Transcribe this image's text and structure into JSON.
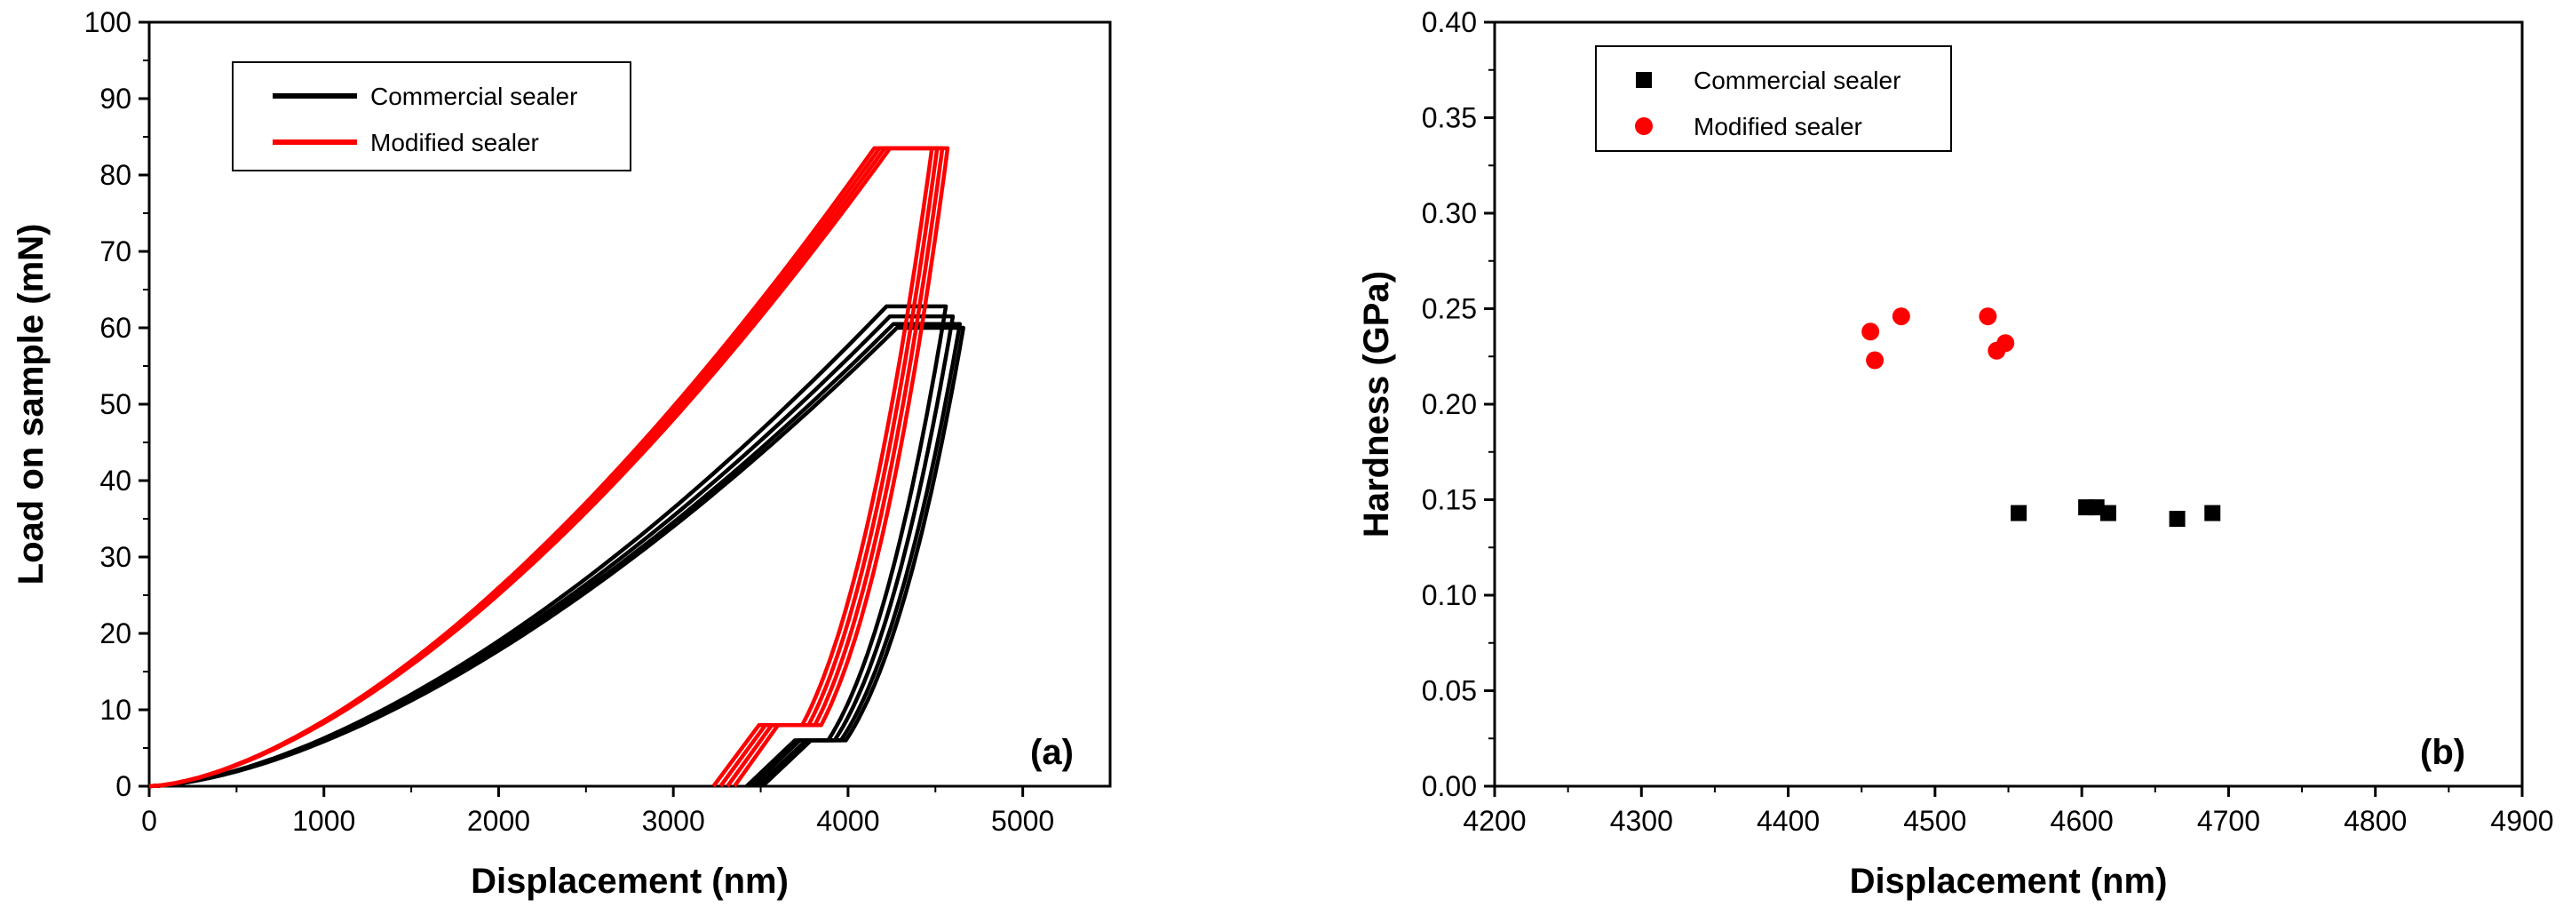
{
  "chart_data": [
    {
      "type": "line",
      "panel_label": "(a)",
      "xlabel": "Displacement (nm)",
      "ylabel": "Load on sample (mN)",
      "xlim": [
        0,
        5500
      ],
      "ylim": [
        0,
        100
      ],
      "xticks": [
        0,
        1000,
        2000,
        3000,
        4000,
        5000
      ],
      "yticks": [
        0,
        10,
        20,
        30,
        40,
        50,
        60,
        70,
        80,
        90,
        100
      ],
      "legend": {
        "placement": "top-left",
        "entries": [
          "Commercial sealer",
          "Modified sealer"
        ]
      },
      "colors": {
        "Commercial sealer": "#000000",
        "Modified sealer": "#ff0000"
      },
      "series": [
        {
          "name": "Commercial sealer",
          "curves": [
            {
              "max_load": 62.8,
              "peak_depth": 4220,
              "hold_end": 4560,
              "unload_end": 3480,
              "low_hold": 6,
              "low_hold_end": 3680
            },
            {
              "max_load": 61.5,
              "peak_depth": 4240,
              "hold_end": 4600,
              "unload_end": 3510,
              "low_hold": 6,
              "low_hold_end": 3720
            },
            {
              "max_load": 60.5,
              "peak_depth": 4260,
              "hold_end": 4640,
              "unload_end": 3540,
              "low_hold": 6,
              "low_hold_end": 3750
            },
            {
              "max_load": 60.0,
              "peak_depth": 4280,
              "hold_end": 4660,
              "unload_end": 3570,
              "low_hold": 6,
              "low_hold_end": 3780
            }
          ]
        },
        {
          "name": "Modified sealer",
          "curves": [
            {
              "max_load": 83.5,
              "peak_depth": 4150,
              "hold_end": 4480,
              "unload_end": 3290,
              "low_hold": 8,
              "low_hold_end": 3550
            },
            {
              "max_load": 83.5,
              "peak_depth": 4180,
              "hold_end": 4510,
              "unload_end": 3330,
              "low_hold": 8,
              "low_hold_end": 3590
            },
            {
              "max_load": 83.5,
              "peak_depth": 4210,
              "hold_end": 4540,
              "unload_end": 3370,
              "low_hold": 8,
              "low_hold_end": 3630
            },
            {
              "max_load": 83.5,
              "peak_depth": 4240,
              "hold_end": 4570,
              "unload_end": 3410,
              "low_hold": 8,
              "low_hold_end": 3670
            }
          ]
        }
      ]
    },
    {
      "type": "scatter",
      "panel_label": "(b)",
      "xlabel": "Displacement (nm)",
      "ylabel": "Hardness (GPa)",
      "xlim": [
        4200,
        4900
      ],
      "ylim": [
        0,
        0.4
      ],
      "xticks": [
        4200,
        4300,
        4400,
        4500,
        4600,
        4700,
        4800,
        4900
      ],
      "yticks": [
        "0.00",
        "0.05",
        "0.10",
        "0.15",
        "0.20",
        "0.25",
        "0.30",
        "0.35",
        "0.40"
      ],
      "legend": {
        "placement": "top-left",
        "entries": [
          "Commercial sealer",
          "Modified sealer"
        ]
      },
      "colors": {
        "Commercial sealer": "#000000",
        "Modified sealer": "#ff0000"
      },
      "series": [
        {
          "name": "Commercial sealer",
          "marker": "square",
          "x": [
            4557,
            4603,
            4610,
            4618,
            4665,
            4689
          ],
          "y": [
            0.143,
            0.146,
            0.146,
            0.143,
            0.14,
            0.143
          ]
        },
        {
          "name": "Modified sealer",
          "marker": "circle",
          "x": [
            4456,
            4459,
            4477,
            4536,
            4542,
            4548
          ],
          "y": [
            0.238,
            0.223,
            0.246,
            0.246,
            0.228,
            0.232
          ]
        }
      ]
    }
  ]
}
